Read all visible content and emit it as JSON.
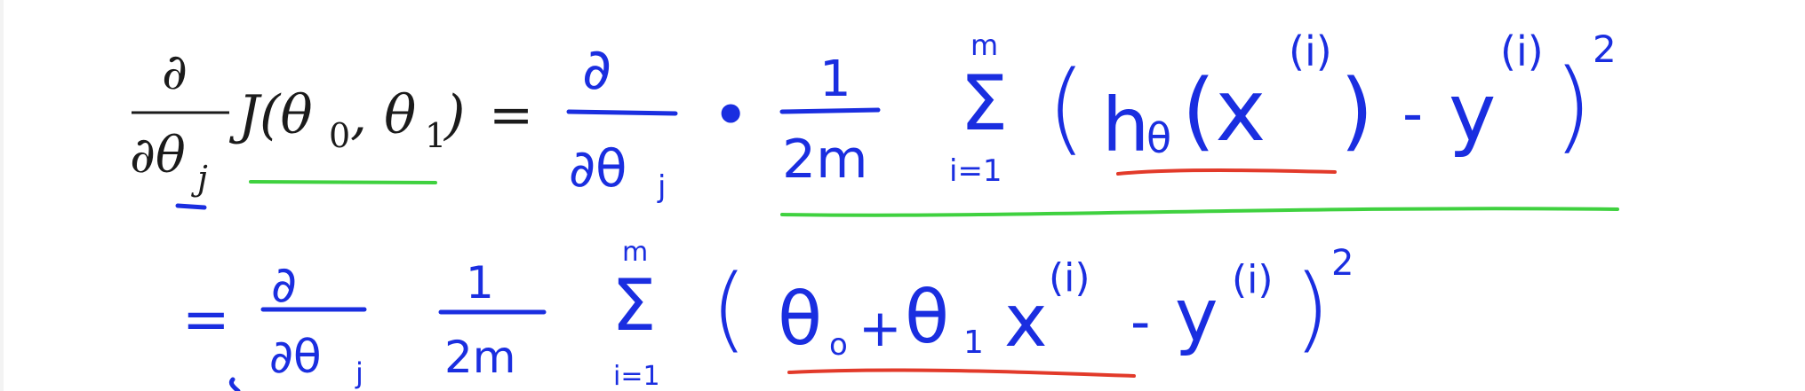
{
  "formula": {
    "lhs_partial_numerator": "∂",
    "lhs_partial_denominator": "∂θ",
    "lhs_subscript_j": "j",
    "lhs_function": "J(θ",
    "lhs_sub0": "0",
    "lhs_comma": ", θ",
    "lhs_sub1": "1",
    "lhs_close": ")",
    "lhs_equals": "="
  },
  "handwritten": {
    "line1": {
      "partial": "∂",
      "partial_den": "∂θ",
      "sub_j": "j",
      "dot": "•",
      "one": "1",
      "two_m": "2m",
      "sum_top": "m",
      "sum": "Σ",
      "sum_bottom": "i=1",
      "open": "(",
      "h": "h",
      "h_sub": "θ",
      "x": "(x",
      "x_sup": "(i)",
      "close_x": ")",
      "minus": "-",
      "y": "y",
      "y_sup": "(i)",
      "close": ")",
      "square": "2"
    },
    "line2": {
      "equals": "=",
      "partial": "∂",
      "partial_den": "∂θ",
      "sub_j": "j",
      "one": "1",
      "two_m": "2m",
      "sum_top": "m",
      "sum": "Σ",
      "sum_bottom": "i=1",
      "open": "(",
      "theta0": "θ",
      "theta0_sub": "o",
      "plus": "+",
      "theta1": "θ",
      "theta1_sub": "1",
      "x": "x",
      "x_sup": "(i)",
      "minus": "-",
      "y": "y",
      "y_sup": "(i)",
      "close": ")",
      "square": "2"
    }
  },
  "colors": {
    "ink": "#1a2ee0",
    "underline_green": "#3fd13f",
    "underline_red": "#e23a2a",
    "typeset": "#1b1b1b"
  }
}
